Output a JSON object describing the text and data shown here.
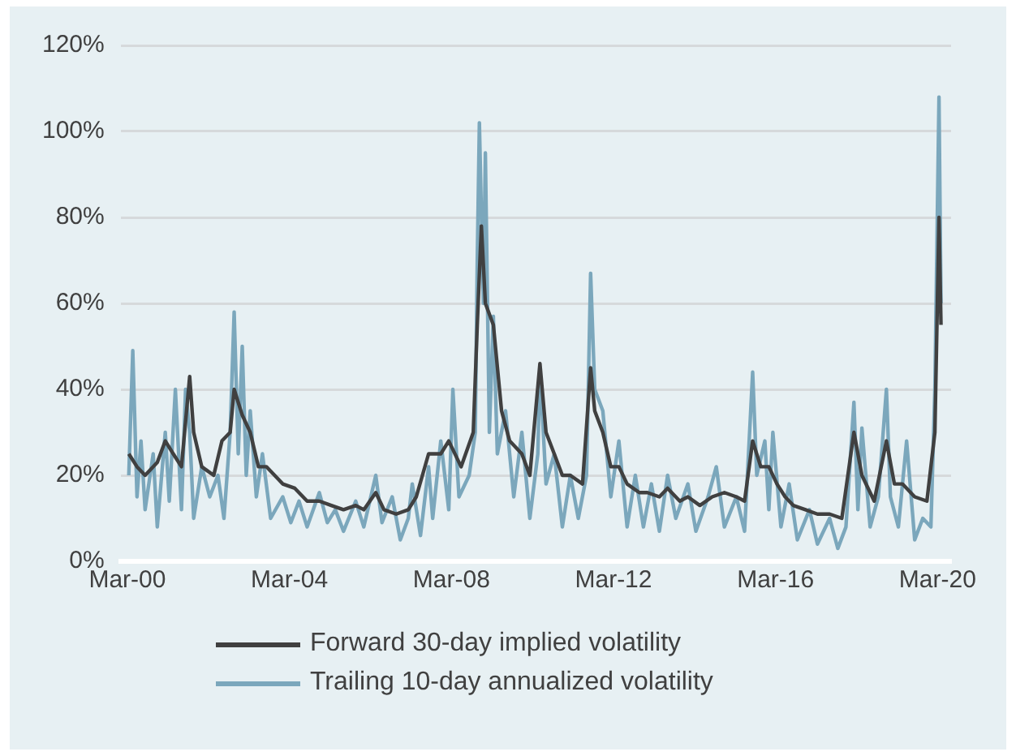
{
  "chart_data": {
    "type": "line",
    "xlim": [
      "2000-01",
      "2020-07"
    ],
    "xticks": [
      {
        "value": "2000-03",
        "label": "Mar-00"
      },
      {
        "value": "2004-03",
        "label": "Mar-04"
      },
      {
        "value": "2008-03",
        "label": "Mar-08"
      },
      {
        "value": "2012-03",
        "label": "Mar-12"
      },
      {
        "value": "2016-03",
        "label": "Mar-16"
      },
      {
        "value": "2020-03",
        "label": "Mar-20"
      }
    ],
    "ylim": [
      0,
      120
    ],
    "yticks": [
      {
        "value": 0,
        "label": "0%"
      },
      {
        "value": 20,
        "label": "20%"
      },
      {
        "value": 40,
        "label": "40%"
      },
      {
        "value": 60,
        "label": "60%"
      },
      {
        "value": 80,
        "label": "80%"
      },
      {
        "value": 100,
        "label": "100%"
      },
      {
        "value": 120,
        "label": "120%"
      }
    ],
    "grid": "y",
    "legend": "bottom",
    "marker": "none",
    "line_style": "solid",
    "series": [
      {
        "name": "Forward 30-day implied volatility",
        "color": "#404040",
        "x": [
          "2000-03-14",
          "2000-05-27",
          "2000-08-08",
          "2000-11-26",
          "2001-02-06",
          "2001-04-19",
          "2001-07-02",
          "2001-09-14",
          "2001-10-20",
          "2002-01-01",
          "2002-04-19",
          "2002-07-02",
          "2002-09-14",
          "2002-10-20",
          "2003-01-01",
          "2003-03-14",
          "2003-05-27",
          "2003-08-08",
          "2003-10-20",
          "2004-01-01",
          "2004-04-19",
          "2004-08-08",
          "2004-11-26",
          "2005-03-14",
          "2005-07-02",
          "2005-10-20",
          "2006-01-01",
          "2006-04-19",
          "2006-07-02",
          "2006-10-20",
          "2007-02-06",
          "2007-04-19",
          "2007-08-08",
          "2007-11-26",
          "2008-02-06",
          "2008-05-27",
          "2008-09-14",
          "2008-10-20",
          "2008-11-26",
          "2009-01-01",
          "2009-03-14",
          "2009-05-27",
          "2009-08-08",
          "2009-11-26",
          "2010-02-06",
          "2010-05-08",
          "2010-07-02",
          "2010-09-14",
          "2010-11-26",
          "2011-02-06",
          "2011-05-27",
          "2011-08-08",
          "2011-09-14",
          "2011-11-26",
          "2012-02-06",
          "2012-04-19",
          "2012-07-02",
          "2012-10-20",
          "2013-01-01",
          "2013-04-19",
          "2013-07-02",
          "2013-10-20",
          "2014-01-01",
          "2014-04-19",
          "2014-08-08",
          "2014-11-26",
          "2015-03-14",
          "2015-05-27",
          "2015-08-08",
          "2015-10-20",
          "2016-01-01",
          "2016-03-14",
          "2016-05-27",
          "2016-08-08",
          "2016-11-26",
          "2017-03-14",
          "2017-07-02",
          "2017-10-20",
          "2018-02-06",
          "2018-04-19",
          "2018-08-08",
          "2018-11-26",
          "2019-02-06",
          "2019-04-19",
          "2019-08-08",
          "2019-11-26",
          "2020-02-06",
          "2020-03-14",
          "2020-04-01"
        ],
        "values": [
          25,
          22,
          20,
          23,
          28,
          25,
          22,
          43,
          30,
          22,
          20,
          28,
          30,
          40,
          34,
          30,
          22,
          22,
          20,
          18,
          17,
          14,
          14,
          13,
          12,
          13,
          12,
          16,
          12,
          11,
          12,
          15,
          25,
          25,
          28,
          22,
          30,
          55,
          78,
          60,
          55,
          35,
          28,
          25,
          20,
          46,
          30,
          25,
          20,
          20,
          18,
          45,
          35,
          30,
          22,
          22,
          18,
          16,
          16,
          15,
          17,
          14,
          15,
          13,
          15,
          16,
          15,
          14,
          28,
          22,
          22,
          18,
          15,
          13,
          12,
          11,
          11,
          10,
          30,
          20,
          14,
          28,
          18,
          18,
          15,
          14,
          30,
          80,
          55
        ]
      },
      {
        "name": "Trailing 10-day annualized volatility",
        "color": "#7ba7bc",
        "x": [
          "2000-03-14",
          "2000-04-19",
          "2000-05-27",
          "2000-07-02",
          "2000-08-08",
          "2000-10-20",
          "2000-11-26",
          "2001-02-06",
          "2001-03-14",
          "2001-05-08",
          "2001-07-02",
          "2001-08-08",
          "2001-09-14",
          "2001-10-20",
          "2002-01-01",
          "2002-03-14",
          "2002-05-27",
          "2002-07-20",
          "2002-09-14",
          "2002-10-20",
          "2002-11-26",
          "2003-01-01",
          "2003-02-06",
          "2003-03-14",
          "2003-05-08",
          "2003-07-02",
          "2003-09-14",
          "2004-01-01",
          "2004-03-14",
          "2004-05-27",
          "2004-08-08",
          "2004-11-26",
          "2005-02-06",
          "2005-04-19",
          "2005-07-02",
          "2005-10-20",
          "2006-01-01",
          "2006-04-19",
          "2006-06-14",
          "2006-09-14",
          "2006-11-26",
          "2007-02-06",
          "2007-03-14",
          "2007-05-27",
          "2007-08-08",
          "2007-09-14",
          "2007-11-26",
          "2008-02-06",
          "2008-03-14",
          "2008-05-08",
          "2008-08-08",
          "2008-10-02",
          "2008-10-20",
          "2008-11-08",
          "2008-12-14",
          "2009-01-01",
          "2009-02-06",
          "2009-03-14",
          "2009-04-19",
          "2009-07-02",
          "2009-09-14",
          "2009-11-26",
          "2010-02-06",
          "2010-04-19",
          "2010-05-08",
          "2010-07-02",
          "2010-09-14",
          "2010-11-26",
          "2011-02-06",
          "2011-04-19",
          "2011-07-02",
          "2011-08-08",
          "2011-09-14",
          "2011-11-26",
          "2012-02-06",
          "2012-04-19",
          "2012-07-02",
          "2012-09-14",
          "2012-11-26",
          "2013-02-06",
          "2013-04-19",
          "2013-07-02",
          "2013-09-14",
          "2014-01-01",
          "2014-03-14",
          "2014-07-02",
          "2014-09-14",
          "2014-11-26",
          "2015-03-14",
          "2015-05-27",
          "2015-08-08",
          "2015-09-14",
          "2015-11-26",
          "2016-01-01",
          "2016-02-06",
          "2016-04-19",
          "2016-07-02",
          "2016-09-14",
          "2017-01-01",
          "2017-03-14",
          "2017-07-02",
          "2017-09-14",
          "2017-11-26",
          "2018-02-06",
          "2018-03-14",
          "2018-04-19",
          "2018-07-02",
          "2018-09-14",
          "2018-11-26",
          "2019-01-01",
          "2019-03-14",
          "2019-05-27",
          "2019-08-08",
          "2019-10-20",
          "2020-01-01",
          "2020-02-06",
          "2020-03-14",
          "2020-04-01"
        ],
        "values": [
          20,
          49,
          15,
          28,
          12,
          25,
          8,
          30,
          14,
          40,
          12,
          40,
          30,
          10,
          22,
          15,
          20,
          10,
          30,
          58,
          25,
          50,
          20,
          35,
          15,
          25,
          10,
          15,
          9,
          14,
          8,
          16,
          9,
          12,
          7,
          14,
          8,
          20,
          9,
          15,
          5,
          10,
          18,
          6,
          22,
          10,
          28,
          12,
          40,
          15,
          20,
          30,
          70,
          102,
          60,
          95,
          30,
          57,
          25,
          35,
          15,
          30,
          10,
          25,
          45,
          18,
          25,
          8,
          20,
          10,
          20,
          67,
          40,
          35,
          15,
          28,
          8,
          20,
          8,
          18,
          7,
          20,
          10,
          18,
          7,
          15,
          22,
          8,
          15,
          7,
          44,
          20,
          28,
          12,
          30,
          8,
          18,
          5,
          12,
          4,
          10,
          3,
          8,
          37,
          12,
          31,
          8,
          15,
          40,
          15,
          8,
          28,
          5,
          10,
          8,
          40,
          108,
          60
        ]
      }
    ]
  }
}
